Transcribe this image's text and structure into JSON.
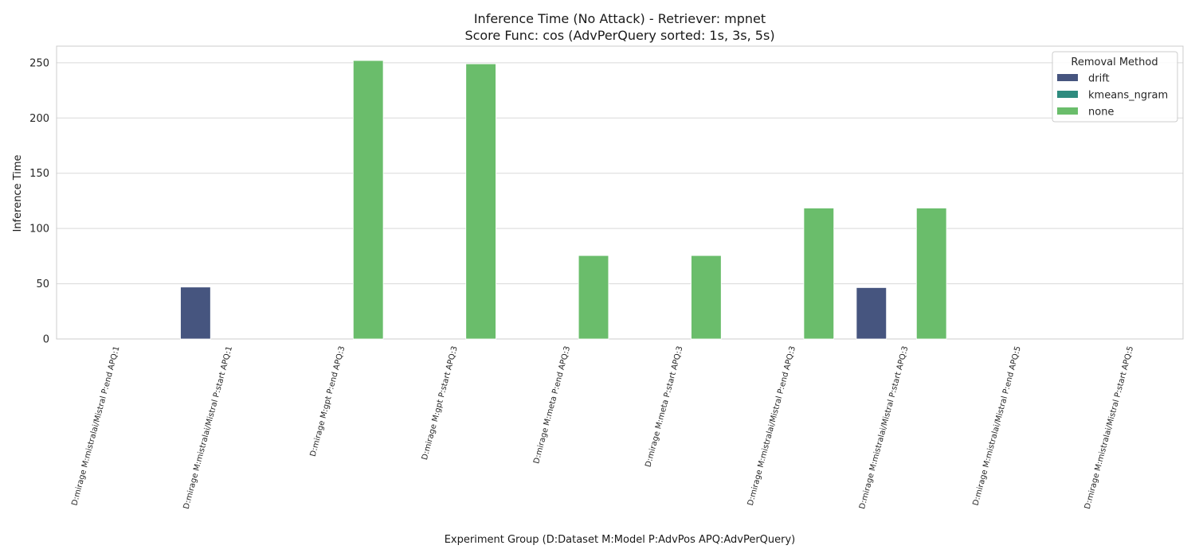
{
  "chart_data": {
    "type": "bar",
    "title": "Inference Time (No Attack) - Retriever: mpnet",
    "subtitle": "Score Func: cos (AdvPerQuery sorted: 1s, 3s, 5s)",
    "xlabel": "Experiment Group (D:Dataset M:Model P:AdvPos APQ:AdvPerQuery)",
    "ylabel": "Inference Time",
    "ylim": [
      0,
      265
    ],
    "yticks": [
      0,
      50,
      100,
      150,
      200,
      250
    ],
    "grid": true,
    "legend": {
      "title": "Removal Method",
      "position": "top-right"
    },
    "categories": [
      "D:mirage M:mistralai/Mistral P:end APQ:1",
      "D:mirage M:mistralai/Mistral P:start APQ:1",
      "D:mirage M:gpt P:end APQ:3",
      "D:mirage M:gpt P:start APQ:3",
      "D:mirage M:meta P:end APQ:3",
      "D:mirage M:meta P:start APQ:3",
      "D:mirage M:mistralai/Mistral P:end APQ:3",
      "D:mirage M:mistralai/Mistral P:start APQ:3",
      "D:mirage M:mistralai/Mistral P:end APQ:5",
      "D:mirage M:mistralai/Mistral P:start APQ:5"
    ],
    "series": [
      {
        "name": "drift",
        "color": "#46557f",
        "values": [
          null,
          47,
          null,
          null,
          null,
          null,
          null,
          46.5,
          null,
          null
        ]
      },
      {
        "name": "kmeans_ngram",
        "color": "#2e8b7e",
        "values": [
          null,
          null,
          null,
          null,
          null,
          null,
          null,
          null,
          null,
          null
        ]
      },
      {
        "name": "none",
        "color": "#6abd6b",
        "values": [
          null,
          null,
          252,
          249,
          75.5,
          75.5,
          118.5,
          118.5,
          null,
          null
        ]
      }
    ]
  }
}
